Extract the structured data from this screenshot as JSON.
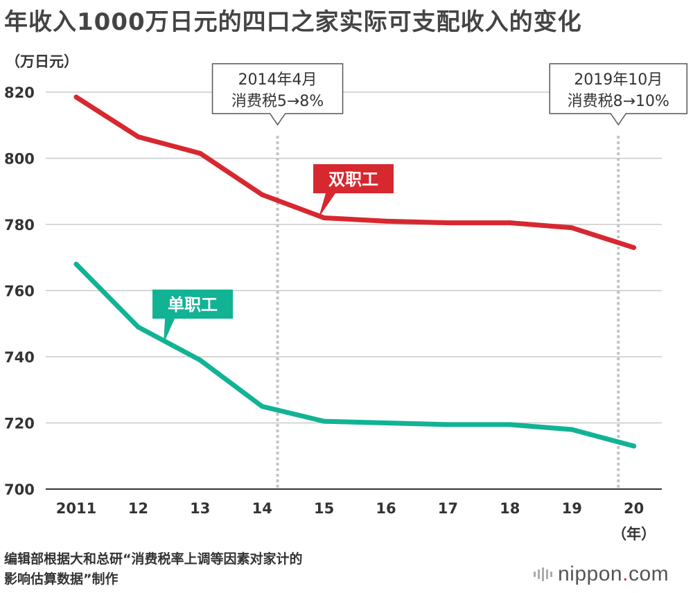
{
  "title": "年收入1000万日元的四口之家实际可支配收入的变化",
  "source": {
    "line1": "编辑部根据大和总研“消费税率上调等因素对家计的",
    "line2": "影响估算数据”制作"
  },
  "brand": {
    "prefix": "nippon",
    "dot": ".",
    "suffix": "com"
  },
  "colors": {
    "red": "#d7282f",
    "green": "#12b394",
    "grid": "#c8c8c8",
    "axis": "#333333",
    "annotation_line": "#c8c8c8"
  },
  "chart_data": {
    "type": "line",
    "title": "年收入1000万日元的四口之家实际可支配收入的变化",
    "ylabel": "（万日元）",
    "xlabel": "（年）",
    "x": [
      "2011",
      "12",
      "13",
      "14",
      "15",
      "16",
      "17",
      "18",
      "19",
      "20"
    ],
    "ylim": [
      700,
      820
    ],
    "yticks": [
      700,
      720,
      740,
      760,
      780,
      800,
      820
    ],
    "grid": true,
    "series": [
      {
        "name": "双职工",
        "color": "#d7282f",
        "values": [
          818.5,
          806.5,
          801.5,
          789,
          782,
          781,
          780.5,
          780.5,
          779,
          773
        ]
      },
      {
        "name": "单职工",
        "color": "#12b394",
        "values": [
          768,
          749,
          739,
          725,
          720.5,
          720,
          719.5,
          719.5,
          718,
          713
        ]
      }
    ],
    "annotations": [
      {
        "x_position": 14.25,
        "line1": "2014年4月",
        "line2": "消费税5→8%"
      },
      {
        "x_position": 19.75,
        "line1": "2019年10月",
        "line2": "消费税8→10%"
      }
    ]
  }
}
